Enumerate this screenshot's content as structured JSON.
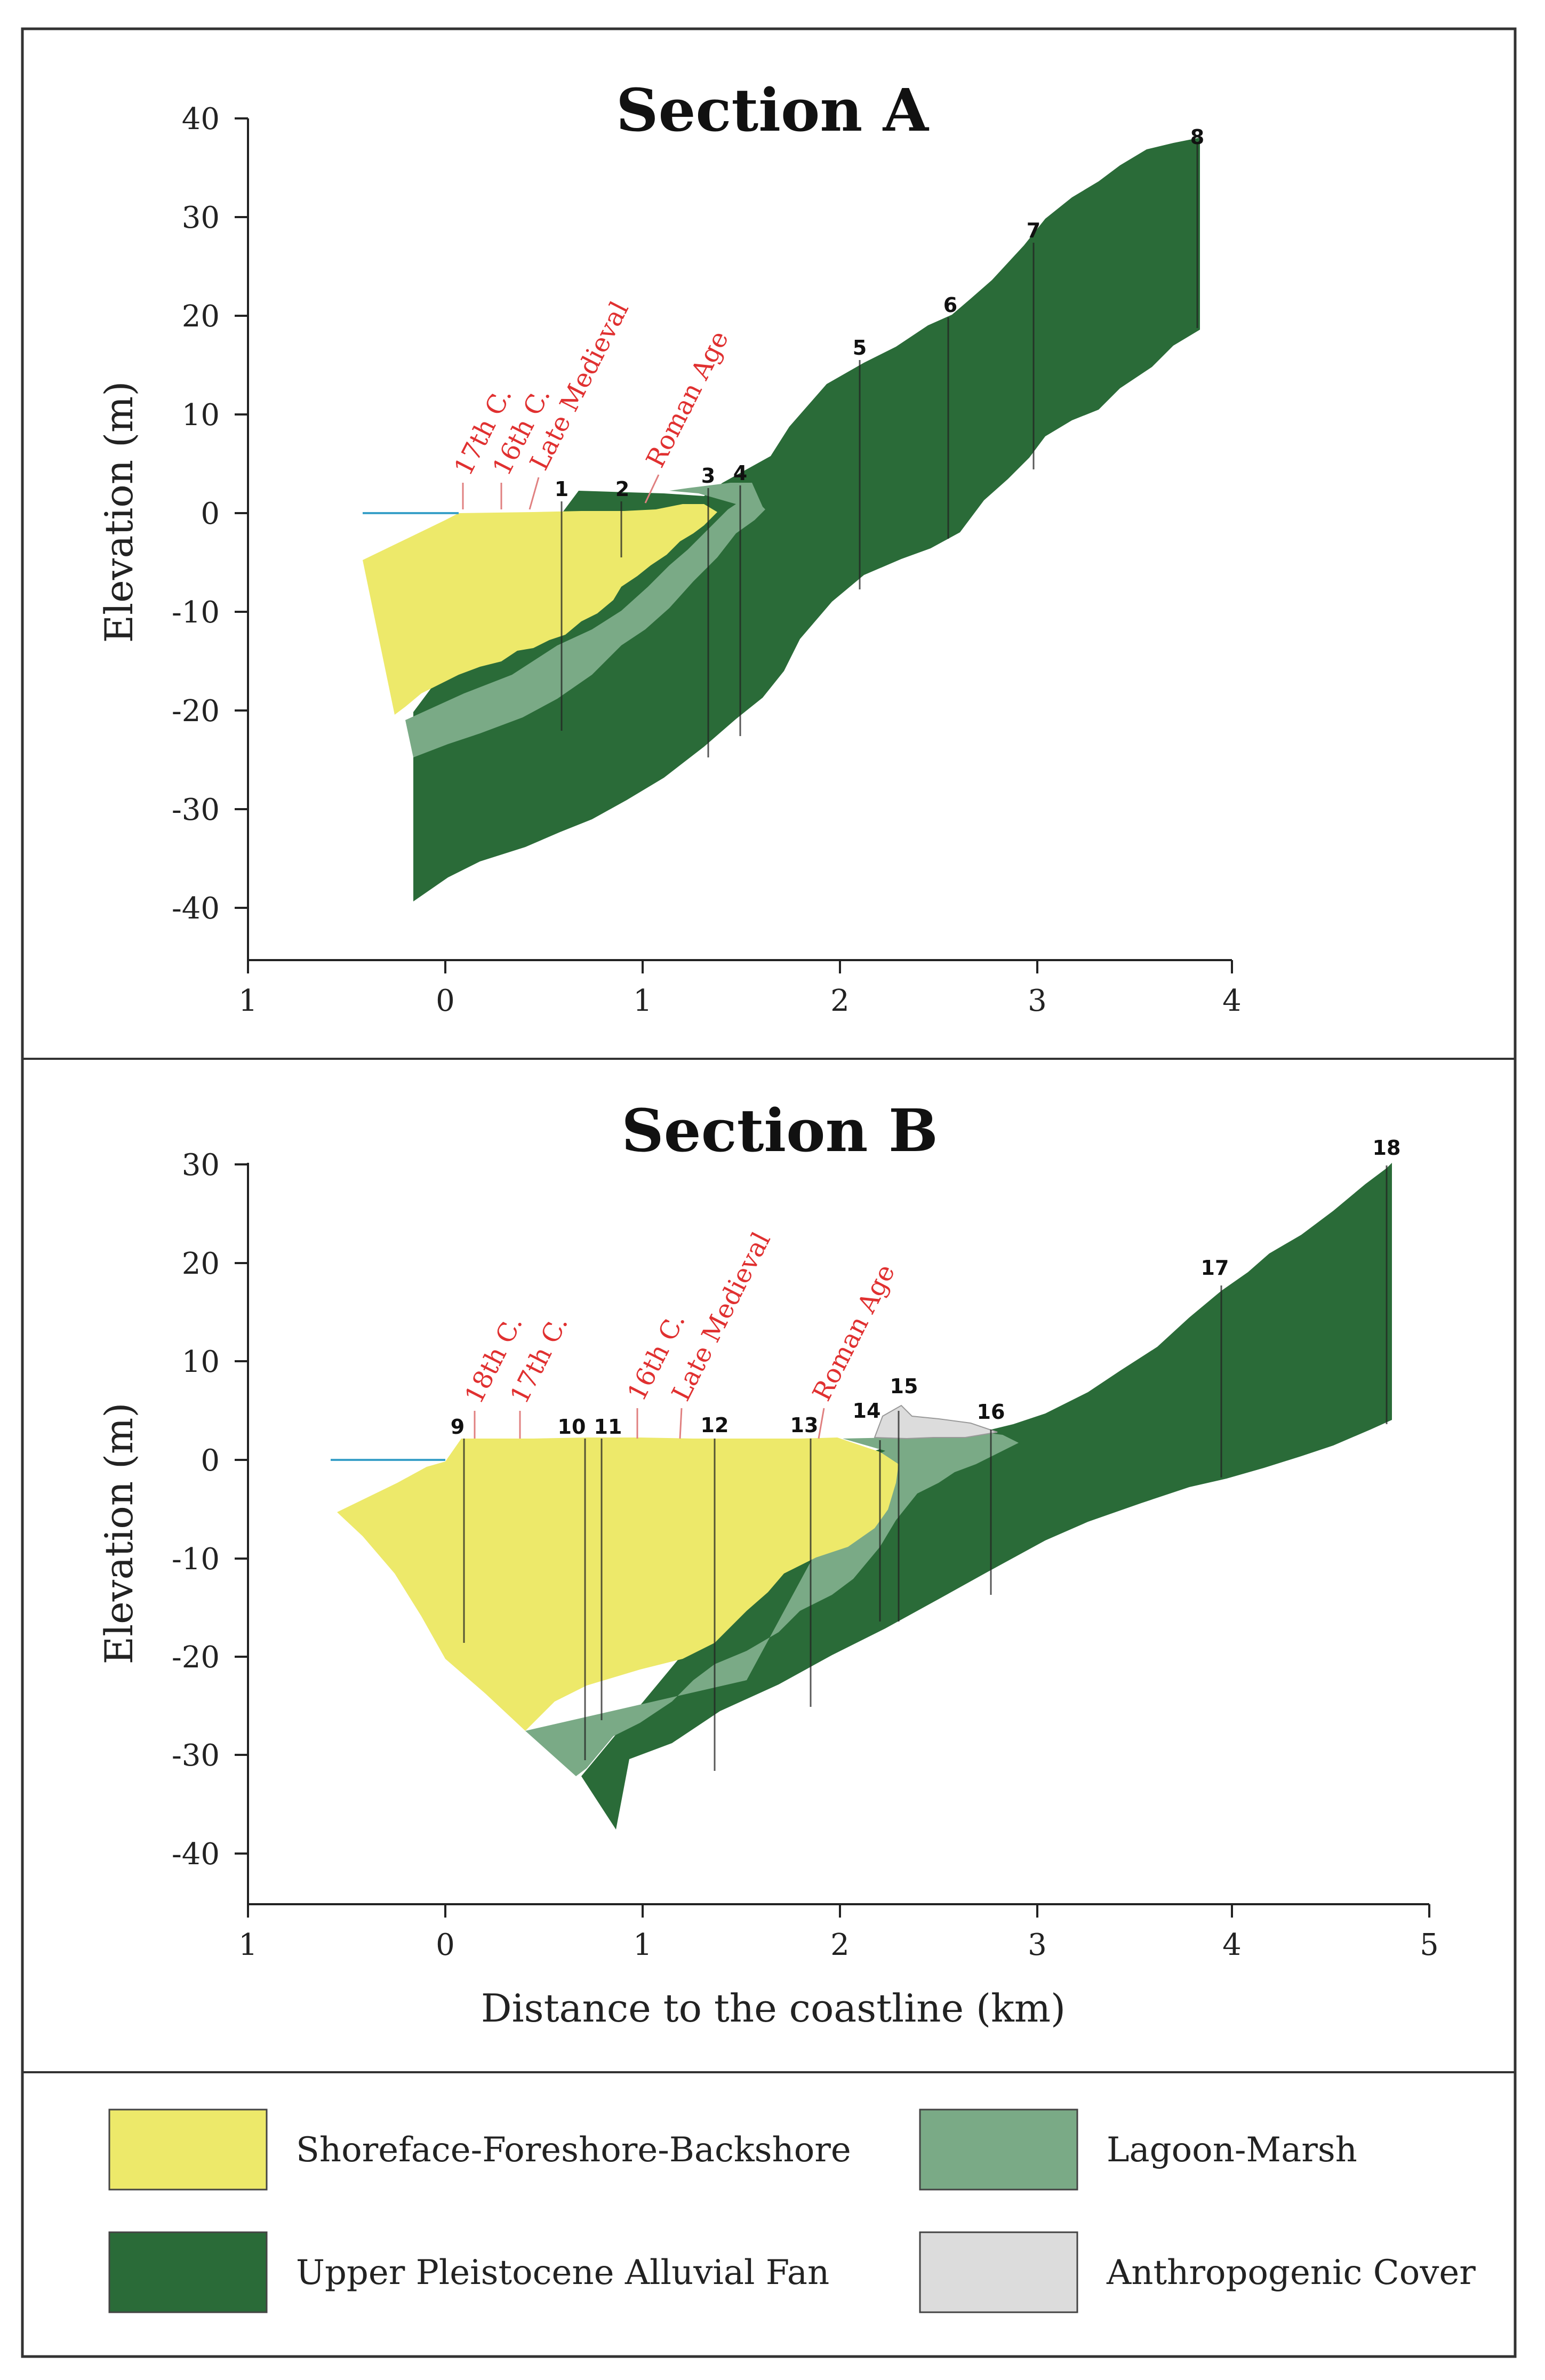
{
  "colors": {
    "shoreface": "#ede96a",
    "lagoon": "#7aaa86",
    "alluvial": "#2a6b38",
    "anthropogenic": "#dcdcdc",
    "sea_line": "#3aa0c8",
    "age_text": "#e03030",
    "age_line": "#e08080"
  },
  "section_a": {
    "title": "Section A",
    "y_axis_title": "Elevation (m)",
    "y_ticks": [
      "40",
      "30",
      "20",
      "10",
      "0",
      "-10",
      "-20",
      "-30",
      "-40"
    ],
    "x_ticks": [
      "1",
      "0",
      "1",
      "2",
      "3",
      "4"
    ],
    "cores": [
      "1",
      "2",
      "3",
      "4",
      "5",
      "6",
      "7",
      "8"
    ],
    "ages": [
      "17th C.",
      "16th C.",
      "Late Medieval",
      "Roman Age"
    ]
  },
  "section_b": {
    "title": "Section B",
    "y_axis_title": "Elevation (m)",
    "x_axis_title": "Distance to the coastline (km)",
    "y_ticks": [
      "30",
      "20",
      "10",
      "0",
      "-10",
      "-20",
      "-30",
      "-40"
    ],
    "x_ticks": [
      "1",
      "0",
      "1",
      "2",
      "3",
      "4",
      "5"
    ],
    "cores": [
      "9",
      "10",
      "11",
      "12",
      "13",
      "14",
      "15",
      "16",
      "17",
      "18"
    ],
    "ages": [
      "18th C.",
      "17th C.",
      "16th C.",
      "Late Medieval",
      "Roman Age"
    ]
  },
  "legend": {
    "items": [
      {
        "label": "Shoreface-Foreshore-Backshore",
        "color_key": "shoreface"
      },
      {
        "label": "Lagoon-Marsh",
        "color_key": "lagoon"
      },
      {
        "label": "Upper Pleistocene Alluvial Fan",
        "color_key": "alluvial"
      },
      {
        "label": "Anthropogenic Cover",
        "color_key": "anthropogenic"
      }
    ]
  }
}
